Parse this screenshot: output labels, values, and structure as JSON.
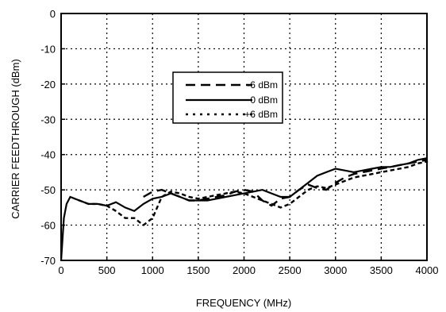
{
  "chart_data": {
    "type": "line",
    "title": "",
    "xlabel": "FREQUENCY (MHz)",
    "ylabel": "CARRIER FEEDTHROUGH (dBm)",
    "xlim": [
      0,
      4000
    ],
    "ylim": [
      -70,
      0
    ],
    "x_ticks": [
      "0",
      "500",
      "1000",
      "1500",
      "2000",
      "2500",
      "3000",
      "3500",
      "4000"
    ],
    "y_ticks": [
      "0",
      "-10",
      "-20",
      "-30",
      "-40",
      "-50",
      "-60",
      "-70"
    ],
    "grid": "dotted",
    "legend_position": "center",
    "series": [
      {
        "name": "-6 dBm",
        "style": "dashed",
        "x": [
          900,
          1000,
          1100,
          1200,
          1300,
          1400,
          1500,
          1600,
          1700,
          1800,
          1900,
          2000,
          2100,
          2200,
          2300,
          2400,
          2500,
          2600,
          2700,
          2800,
          2900,
          3000,
          3100,
          3200,
          3300,
          3400,
          3500,
          3600,
          3700,
          3800,
          3900,
          4000
        ],
        "y": [
          -52,
          -50.5,
          -50,
          -51,
          -52,
          -53,
          -53,
          -52.5,
          -52,
          -51.5,
          -50.5,
          -50,
          -50.5,
          -53,
          -54.5,
          -52.5,
          -52,
          -50,
          -48.5,
          -49.5,
          -50,
          -48,
          -46.5,
          -45.5,
          -45,
          -44.5,
          -44,
          -43.5,
          -43,
          -42.5,
          -42,
          -41.5
        ]
      },
      {
        "name": "0 dBm",
        "style": "solid",
        "x": [
          0,
          10,
          30,
          60,
          100,
          150,
          200,
          300,
          400,
          500,
          600,
          700,
          800,
          900,
          1000,
          1100,
          1200,
          1300,
          1400,
          1500,
          1600,
          1700,
          1800,
          1900,
          2000,
          2100,
          2200,
          2300,
          2400,
          2500,
          2600,
          2700,
          2800,
          2900,
          3000,
          3100,
          3200,
          3300,
          3400,
          3500,
          3600,
          3700,
          3800,
          3900,
          4000
        ],
        "y": [
          -70,
          -66,
          -58,
          -54,
          -52,
          -52.5,
          -53,
          -54,
          -54,
          -54.5,
          -53.5,
          -55,
          -56,
          -54,
          -52.5,
          -52,
          -51,
          -52,
          -53,
          -53,
          -53,
          -52.5,
          -52,
          -51.5,
          -51,
          -50.5,
          -50,
          -51,
          -52,
          -52,
          -50,
          -48,
          -46,
          -45,
          -44,
          -44.5,
          -45,
          -44.5,
          -44,
          -43.5,
          -43.5,
          -43,
          -42.5,
          -41.5,
          -41
        ]
      },
      {
        "name": "+6 dBm",
        "style": "dotted",
        "x": [
          200,
          300,
          400,
          500,
          600,
          700,
          800,
          900,
          1000,
          1100,
          1200,
          1300,
          1400,
          1500,
          1600,
          1700,
          1800,
          1900,
          2000,
          2100,
          2200,
          2300,
          2400,
          2500,
          2600,
          2700,
          2800,
          2900,
          3000,
          3100,
          3200,
          3300,
          3400,
          3500,
          3600,
          3700,
          3800,
          3900,
          4000
        ],
        "y": [
          -53,
          -54,
          -54,
          -54.5,
          -56,
          -58,
          -58,
          -60,
          -58,
          -52,
          -50.5,
          -51,
          -52,
          -52.5,
          -52,
          -51.5,
          -51,
          -50.5,
          -51,
          -52,
          -53,
          -54,
          -55,
          -54,
          -52,
          -50,
          -49,
          -49.5,
          -48.5,
          -47.5,
          -46.5,
          -46,
          -45.5,
          -45,
          -44.5,
          -44,
          -43.5,
          -42.5,
          -42
        ]
      }
    ]
  }
}
